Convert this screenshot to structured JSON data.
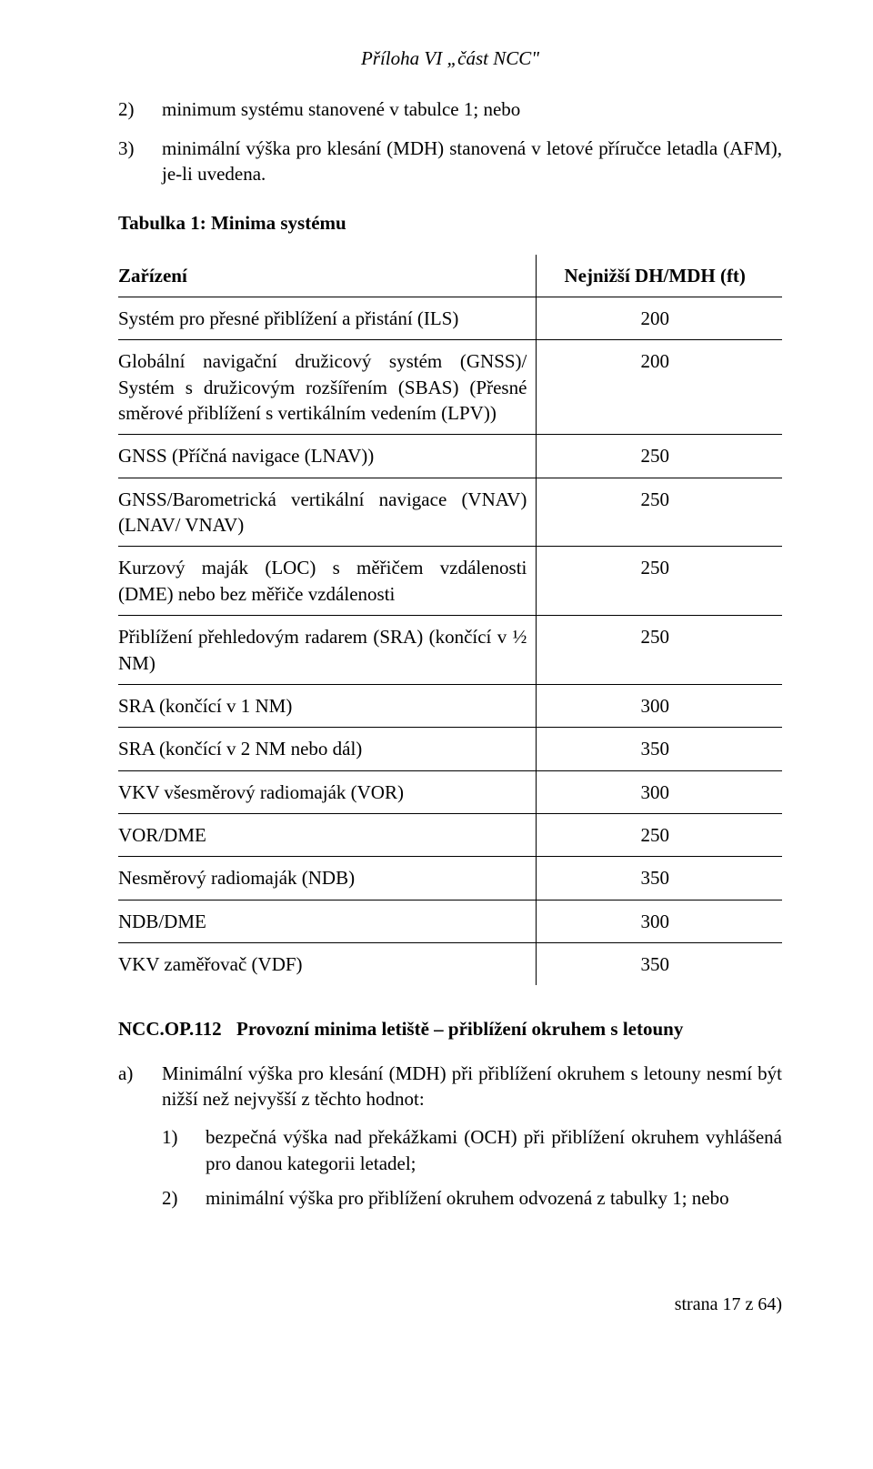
{
  "header": "Příloha VI „část NCC\"",
  "list": {
    "item2": {
      "num": "2)",
      "text": "minimum systému stanovené v tabulce 1; nebo"
    },
    "item3": {
      "num": "3)",
      "text": "minimální výška pro klesání (MDH) stanovená v letové příručce letadla (AFM), je-li uvedena."
    }
  },
  "table": {
    "title": "Tabulka 1: Minima systému",
    "col_left": "Zařízení",
    "col_right": "Nejnižší DH/MDH (ft)",
    "rows": [
      {
        "label": "Systém pro přesné přiblížení a přistání (ILS)",
        "value": "200"
      },
      {
        "label": "Globální navigační družicový systém (GNSS)/ Systém s družicovým rozšířením (SBAS) (Přesné směrové přiblížení s vertikálním vedením (LPV))",
        "value": "200"
      },
      {
        "label": "GNSS (Příčná navigace (LNAV))",
        "value": "250"
      },
      {
        "label": "GNSS/Barometrická vertikální navigace (VNAV) (LNAV/ VNAV)",
        "value": "250"
      },
      {
        "label": "Kurzový maják (LOC) s měřičem vzdálenosti (DME) nebo bez měřiče vzdálenosti",
        "value": "250"
      },
      {
        "label": "Přiblížení přehledovým radarem (SRA) (končící v ½ NM)",
        "value": "250"
      },
      {
        "label": "SRA (končící v 1 NM)",
        "value": "300"
      },
      {
        "label": "SRA (končící v 2 NM nebo dál)",
        "value": "350"
      },
      {
        "label": "VKV všesměrový radiomaják (VOR)",
        "value": "300"
      },
      {
        "label": "VOR/DME",
        "value": "250"
      },
      {
        "label": "Nesměrový radiomaják (NDB)",
        "value": "350"
      },
      {
        "label": "NDB/DME",
        "value": "300"
      },
      {
        "label": "VKV zaměřovač (VDF)",
        "value": "350"
      }
    ]
  },
  "section": {
    "code": "NCC.OP.112",
    "title": "Provozní minima letiště – přiblížení okruhem s letouny",
    "a": {
      "num": "a)",
      "text": "Minimální výška pro klesání (MDH) při přiblížení okruhem s letouny nesmí být nižší než nejvyšší z těchto hodnot:",
      "sub1": {
        "num": "1)",
        "text": "bezpečná výška nad překážkami (OCH) při přiblížení okruhem vyhlášená pro danou kategorii letadel;"
      },
      "sub2": {
        "num": "2)",
        "text": "minimální výška pro přiblížení okruhem odvozená z tabulky 1; nebo"
      }
    }
  },
  "footer": "strana 17 z 64)"
}
